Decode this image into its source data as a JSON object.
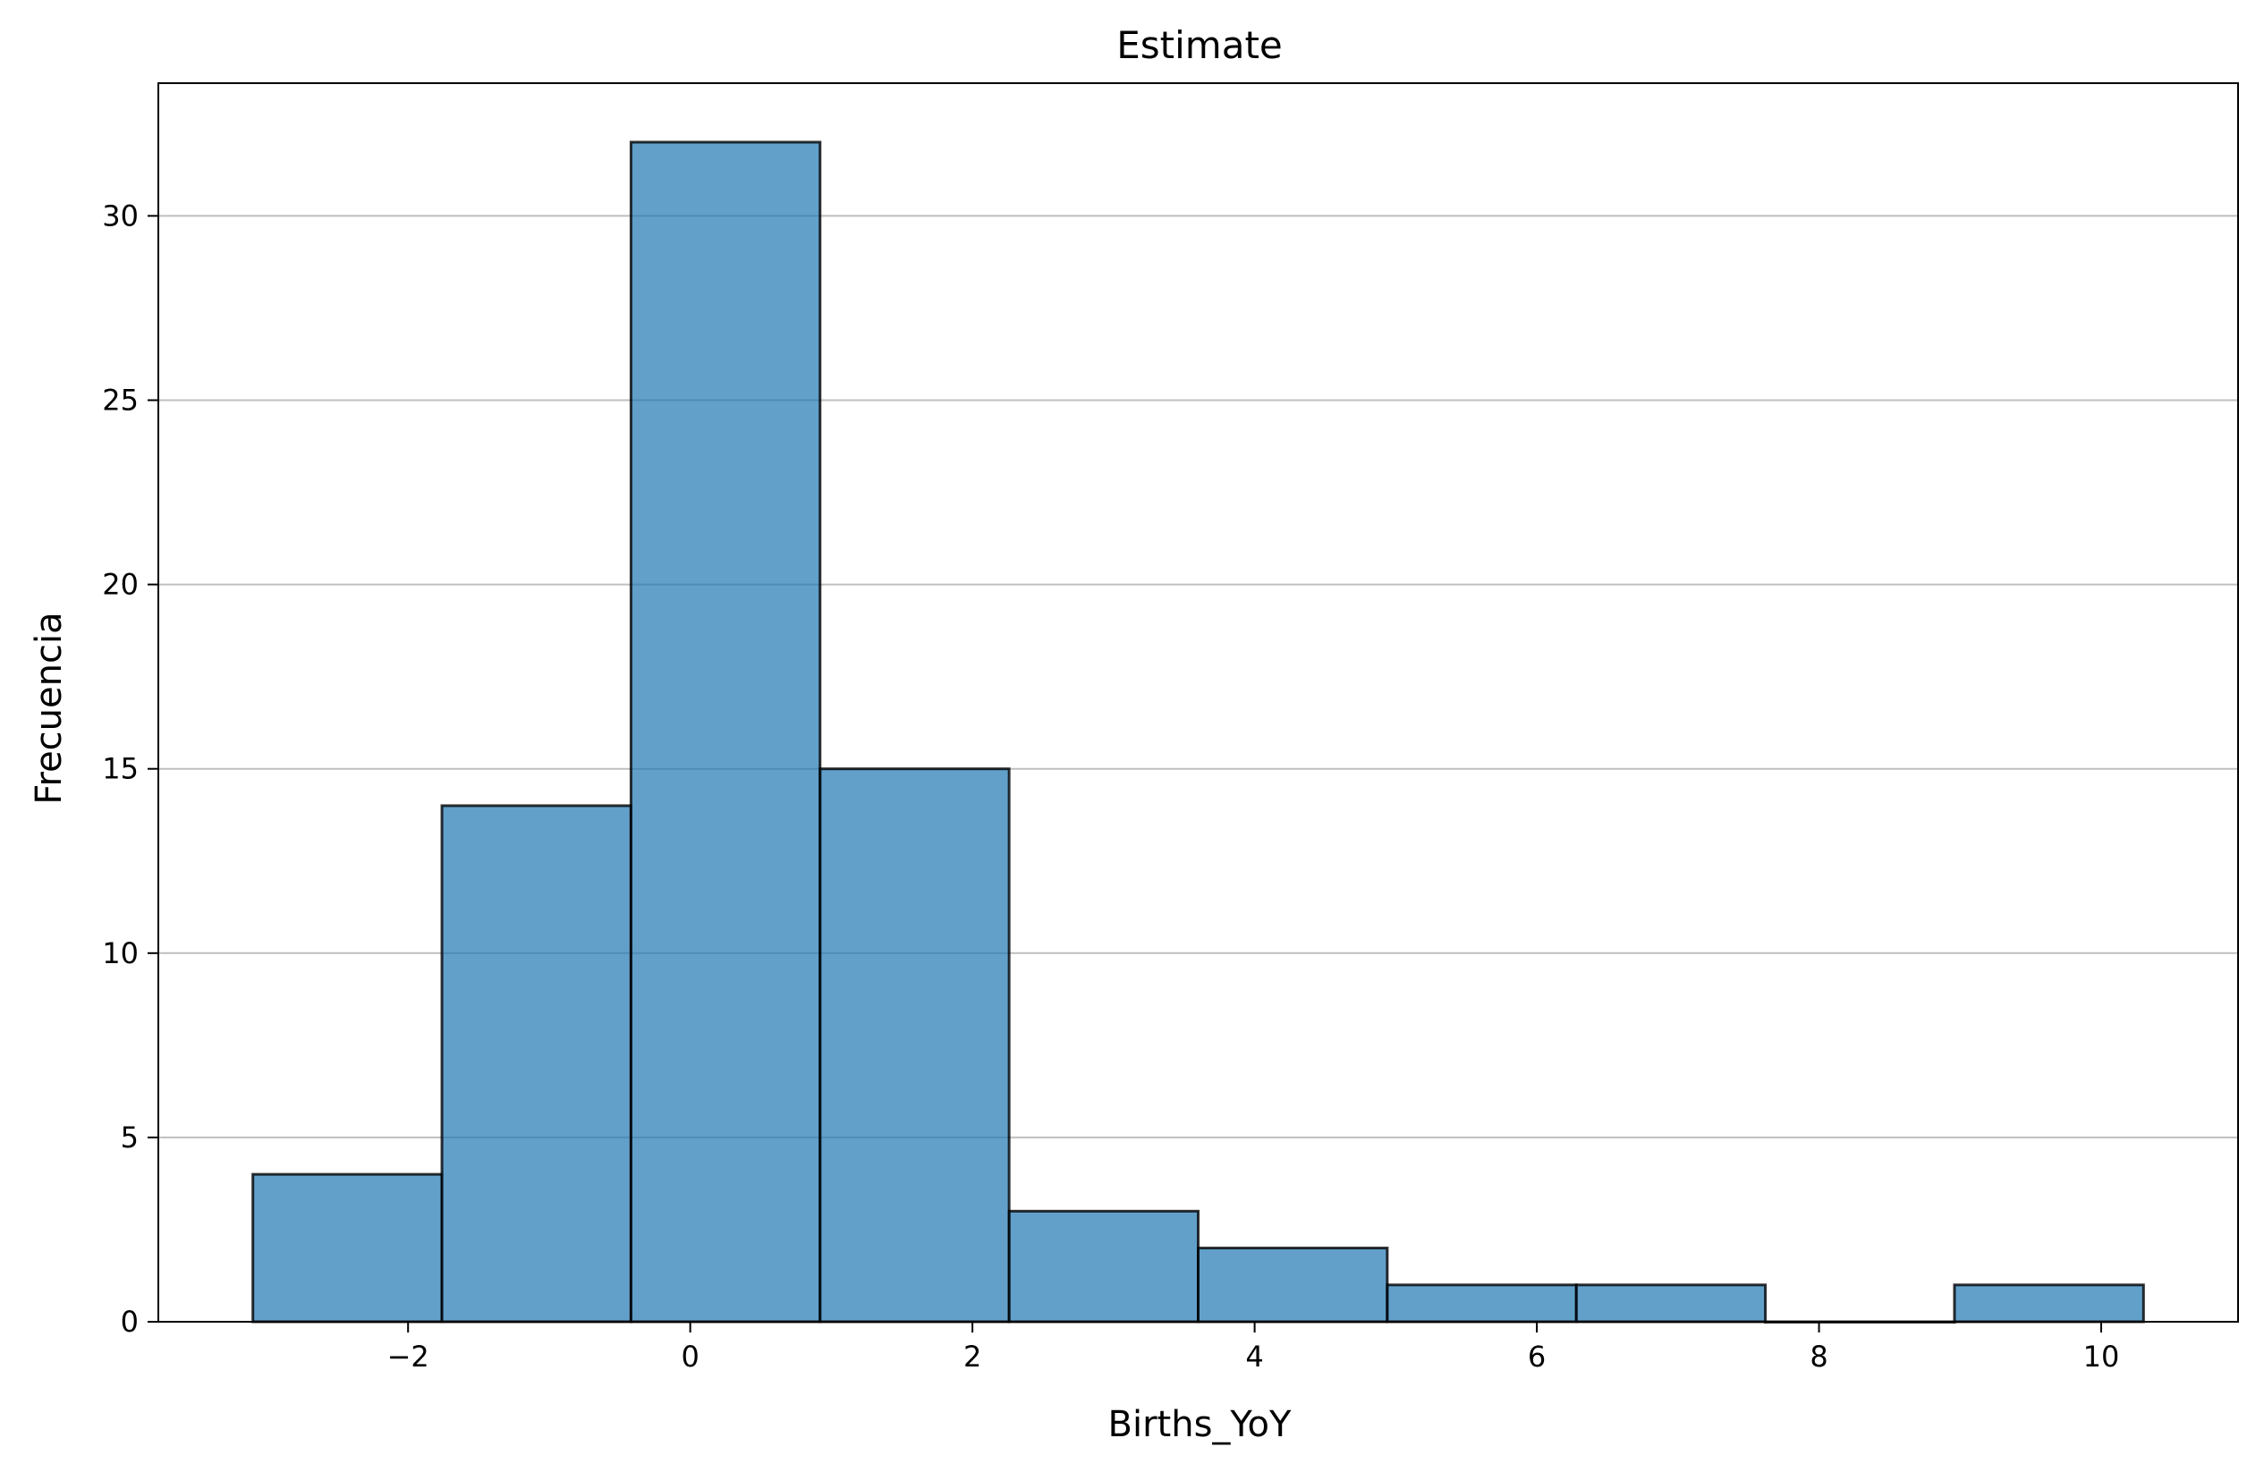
{
  "chart_data": {
    "type": "bar",
    "title": "Estimate",
    "xlabel": "Births_YoY",
    "ylabel": "Frecuencia",
    "bin_edges": [
      -3.1,
      -1.76,
      -0.42,
      0.92,
      2.26,
      3.6,
      4.94,
      6.28,
      7.62,
      8.96,
      10.3
    ],
    "values": [
      4,
      14,
      32,
      15,
      3,
      2,
      1,
      1,
      0,
      1
    ],
    "xlim": [
      -3.77,
      10.97
    ],
    "ylim": [
      0,
      33.6
    ],
    "xticks": [
      -2,
      0,
      2,
      4,
      6,
      8,
      10
    ],
    "xtick_labels": [
      "−2",
      "0",
      "2",
      "4",
      "6",
      "8",
      "10"
    ],
    "yticks": [
      0,
      5,
      10,
      15,
      20,
      25,
      30
    ],
    "ytick_labels": [
      "0",
      "5",
      "10",
      "15",
      "20",
      "25",
      "30"
    ],
    "grid": "y",
    "bar_color": "#1f77b4"
  }
}
